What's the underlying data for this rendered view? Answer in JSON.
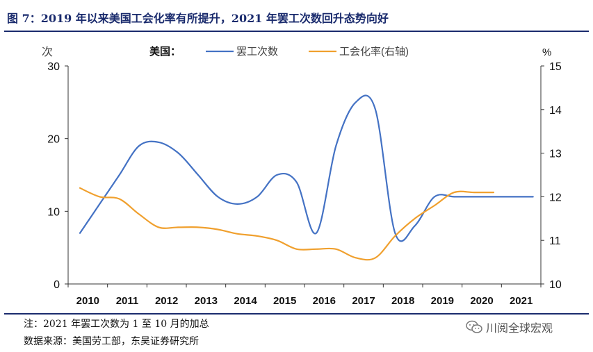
{
  "figure": {
    "title": "图 7：2019 年以来美国工会化率有所提升，2021 年罢工次数回升态势向好",
    "note": "注：2021 年罢工次数为 1 至 10 月的加总",
    "source": "数据来源：美国劳工部，东吴证券研究所",
    "watermark": "川阅全球宏观",
    "watermark_icon": "wechat-icon"
  },
  "chart_data": {
    "type": "line",
    "legend_title": "美国：",
    "legend_position": "top",
    "left_unit": "次",
    "right_unit": "%",
    "categories": [
      "2010",
      "2011",
      "2012",
      "2013",
      "2014",
      "2015",
      "2016",
      "2017",
      "2018",
      "2019",
      "2020",
      "2021"
    ],
    "y_left": {
      "min": 0,
      "max": 30,
      "ticks": [
        0,
        10,
        20,
        30
      ]
    },
    "y_right": {
      "min": 10,
      "max": 15,
      "ticks": [
        10,
        11,
        12,
        13,
        14,
        15
      ]
    },
    "grid": false,
    "series": [
      {
        "name": "罢工次数",
        "axis": "left",
        "color": "#4472c4",
        "x": [
          2009.8,
          2010.3,
          2010.8,
          2011.3,
          2011.8,
          2012.3,
          2012.8,
          2013.3,
          2013.8,
          2014.3,
          2014.8,
          2015.3,
          2015.8,
          2016.3,
          2016.8,
          2017.3,
          2017.8,
          2018.3,
          2018.8,
          2019.3,
          2019.8,
          2020.3,
          2020.8,
          2021.3
        ],
        "values": [
          7,
          11,
          15,
          19,
          19.5,
          18,
          15,
          12,
          11,
          12,
          15,
          14,
          7,
          19,
          25,
          24,
          7,
          8,
          12,
          12,
          12,
          12,
          12,
          12
        ]
      },
      {
        "name": "工会化率(右轴)",
        "axis": "right",
        "color": "#f0a02e",
        "x": [
          2009.8,
          2010.3,
          2010.8,
          2011.3,
          2011.8,
          2012.3,
          2012.8,
          2013.3,
          2013.8,
          2014.3,
          2014.8,
          2015.3,
          2015.8,
          2016.3,
          2016.8,
          2017.3,
          2017.8,
          2018.3,
          2018.8,
          2019.3,
          2019.8,
          2020.3
        ],
        "values": [
          12.2,
          12.0,
          11.95,
          11.6,
          11.3,
          11.3,
          11.3,
          11.25,
          11.15,
          11.1,
          11.0,
          10.8,
          10.8,
          10.8,
          10.6,
          10.6,
          11.1,
          11.5,
          11.8,
          12.1,
          12.1,
          12.1
        ]
      }
    ]
  }
}
